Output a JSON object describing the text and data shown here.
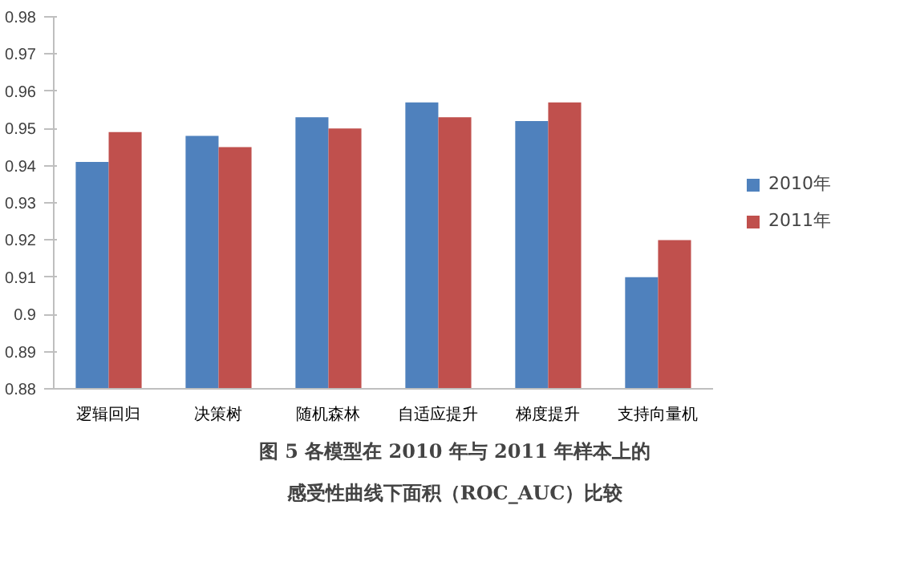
{
  "chart_data": {
    "type": "bar",
    "title": "图 5 各模型在 2010 年与 2011 年样本上的",
    "subtitle": "感受性曲线下面积（ROC_AUC）比较",
    "categories": [
      "逻辑回归",
      "决策树",
      "随机森林",
      "自适应提升",
      "梯度提升",
      "支持向量机"
    ],
    "series": [
      {
        "name": "2010年",
        "color": "#4f81bd",
        "values": [
          0.941,
          0.948,
          0.953,
          0.957,
          0.952,
          0.91
        ]
      },
      {
        "name": "2011年",
        "color": "#c0504d",
        "values": [
          0.949,
          0.945,
          0.95,
          0.953,
          0.957,
          0.92
        ]
      }
    ],
    "ylim": [
      0.88,
      0.98
    ],
    "yticks": [
      0.88,
      0.89,
      0.9,
      0.91,
      0.92,
      0.93,
      0.94,
      0.95,
      0.96,
      0.97,
      0.98
    ],
    "grid": false,
    "legend": "right"
  }
}
